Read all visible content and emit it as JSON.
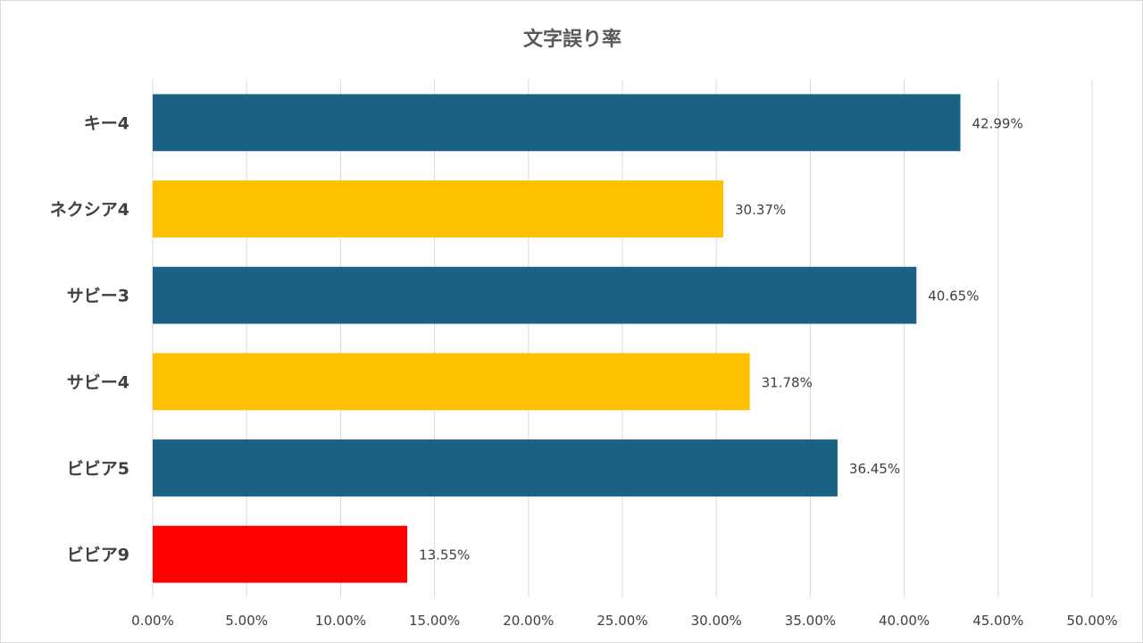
{
  "chart_data": {
    "type": "bar",
    "orientation": "horizontal",
    "title": "文字誤り率",
    "xlabel": "",
    "ylabel": "",
    "xlim": [
      0,
      50
    ],
    "x_ticks": [
      "0.00%",
      "5.00%",
      "10.00%",
      "15.00%",
      "20.00%",
      "25.00%",
      "30.00%",
      "35.00%",
      "40.00%",
      "45.00%",
      "50.00%"
    ],
    "grid": "vertical",
    "legend": "none",
    "categories": [
      "キー4",
      "ネクシア4",
      "サビー3",
      "サビー4",
      "ビビア5",
      "ビビア9"
    ],
    "values": [
      42.99,
      30.37,
      40.65,
      31.78,
      36.45,
      13.55
    ],
    "data_labels": [
      "42.99%",
      "30.37%",
      "40.65%",
      "31.78%",
      "36.45%",
      "13.55%"
    ],
    "colors": [
      "#1a6185",
      "#ffc000",
      "#1a6185",
      "#ffc000",
      "#1a6185",
      "#ff0000"
    ]
  }
}
